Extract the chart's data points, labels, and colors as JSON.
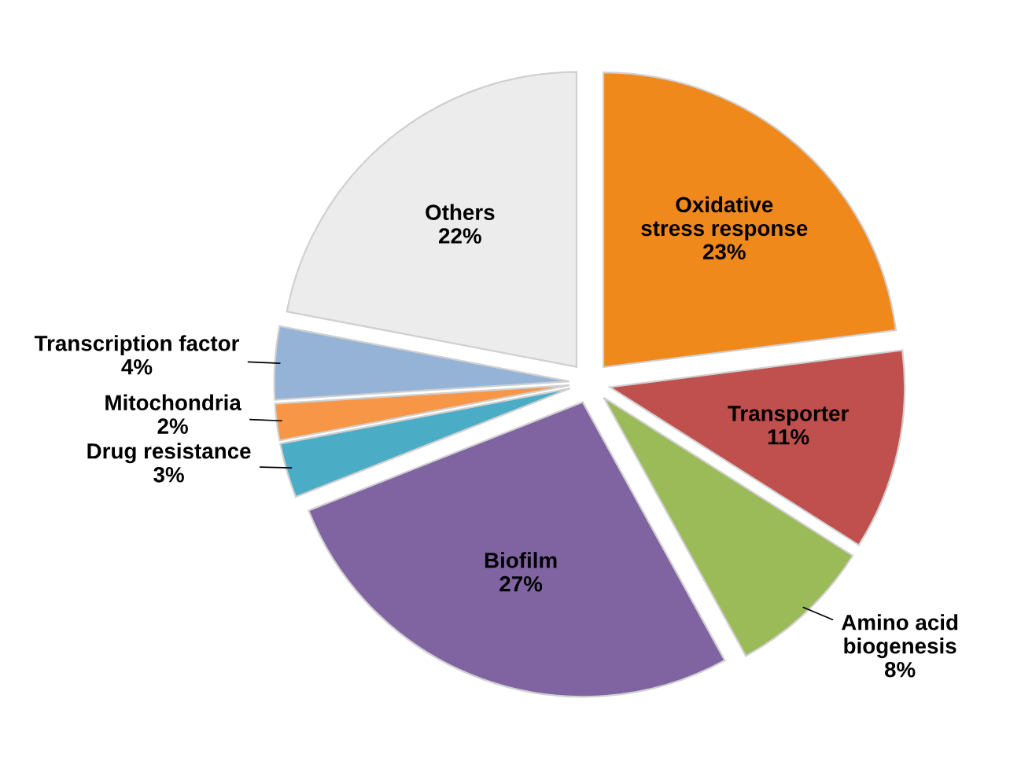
{
  "chart_data": {
    "type": "pie",
    "categories": [
      "Oxidative stress response",
      "Transporter",
      "Amino acid biogenesis",
      "Biofilm",
      "Drug resistance",
      "Mitochondria",
      "Transcription factor",
      "Others"
    ],
    "values": [
      23,
      11,
      8,
      27,
      3,
      2,
      4,
      22
    ],
    "colors": [
      "#f0891c",
      "#c0504d",
      "#9bbb59",
      "#8064a2",
      "#4bacc6",
      "#f79646",
      "#95b3d7",
      "#ececec"
    ],
    "value_labels": [
      "23%",
      "11%",
      "8%",
      "27%",
      "3%",
      "2%",
      "4%",
      "22%"
    ]
  }
}
